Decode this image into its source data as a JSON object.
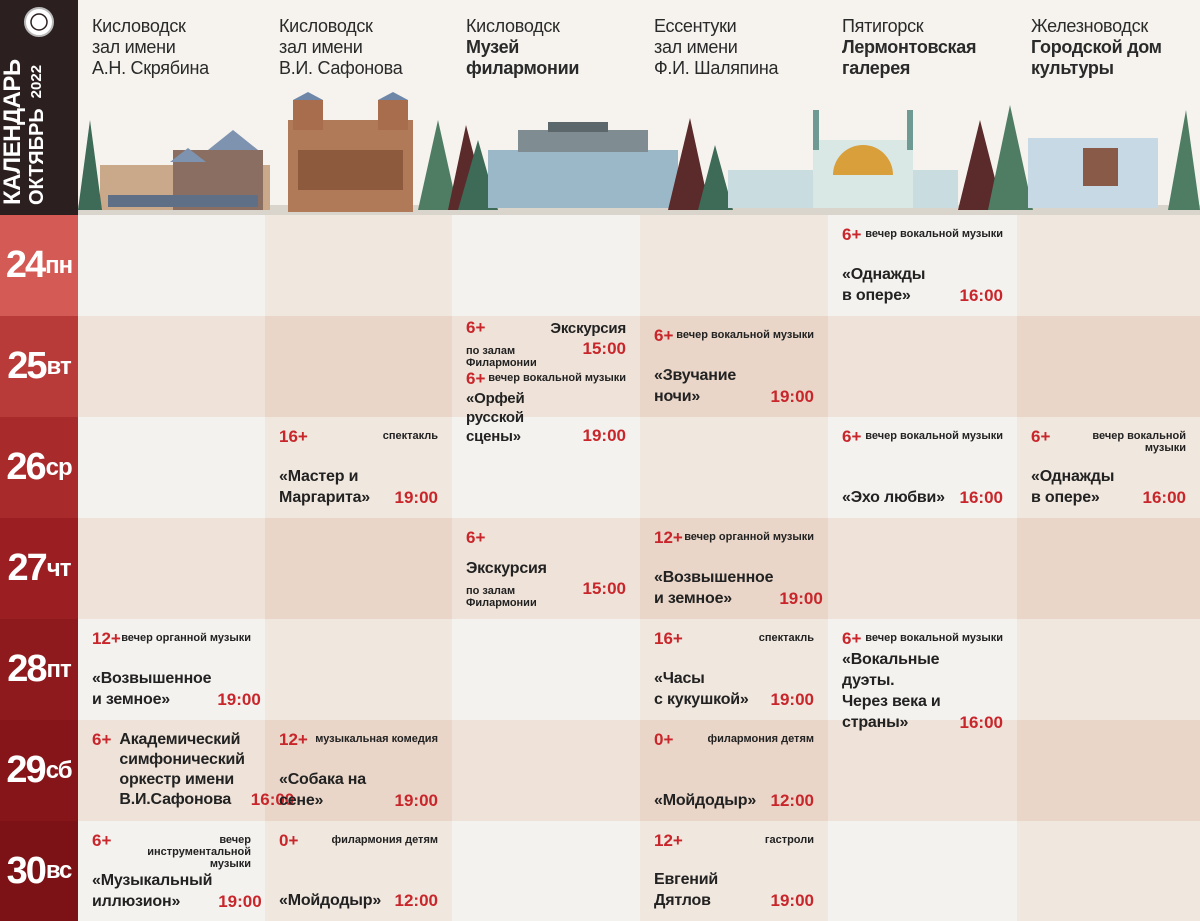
{
  "header": {
    "title": "КАЛЕНДАРЬ",
    "month": "ОКТЯБРЬ",
    "year": "2022"
  },
  "venues": [
    {
      "city": "Кисловодск",
      "hall": "зал имени",
      "name": "А.Н. Скрябина"
    },
    {
      "city": "Кисловодск",
      "hall": "зал имени",
      "name": "В.И. Сафонова"
    },
    {
      "city": "Кисловодск",
      "name": "Музей\nфилармонии"
    },
    {
      "city": "Ессентуки",
      "hall": "зал имени",
      "name": "Ф.И. Шаляпина"
    },
    {
      "city": "Пятигорск",
      "name": "Лермонтовская\nгалерея"
    },
    {
      "city": "Железноводск",
      "name": "Городской дом\nкультуры"
    }
  ],
  "days": [
    {
      "num": "24",
      "dow": "пн"
    },
    {
      "num": "25",
      "dow": "вт"
    },
    {
      "num": "26",
      "dow": "ср"
    },
    {
      "num": "27",
      "dow": "чт"
    },
    {
      "num": "28",
      "dow": "пт"
    },
    {
      "num": "29",
      "dow": "сб"
    },
    {
      "num": "30",
      "dow": "вс"
    }
  ],
  "events": [
    {
      "day": 0,
      "venue": 4,
      "age": "6+",
      "genre": "вечер вокальной музыки",
      "title": "«Однажды\nв опере»",
      "time": "16:00"
    },
    {
      "day": 1,
      "venue": 2,
      "age": "6+",
      "title": "Экскурсия",
      "note": "по залам Филармонии",
      "time": "15:00",
      "half": 0
    },
    {
      "day": 1,
      "venue": 2,
      "age": "6+",
      "genre": "вечер вокальной музыки",
      "title": "«Орфей русской\nсцены»",
      "time": "19:00",
      "half": 1
    },
    {
      "day": 1,
      "venue": 3,
      "age": "6+",
      "genre": "вечер вокальной музыки",
      "title": "«Звучание\nночи»",
      "time": "19:00"
    },
    {
      "day": 2,
      "venue": 1,
      "age": "16+",
      "genre": "спектакль",
      "title": "«Мастер и\nМаргарита»",
      "time": "19:00"
    },
    {
      "day": 2,
      "venue": 4,
      "age": "6+",
      "genre": "вечер вокальной музыки",
      "title": "«Эхо любви»",
      "time": "16:00"
    },
    {
      "day": 2,
      "venue": 5,
      "age": "6+",
      "genre": "вечер вокальной музыки",
      "title": "«Однажды\nв опере»",
      "time": "16:00"
    },
    {
      "day": 3,
      "venue": 2,
      "age": "6+",
      "title": "Экскурсия",
      "note": "по залам Филармонии",
      "time": "15:00"
    },
    {
      "day": 3,
      "venue": 3,
      "age": "12+",
      "genre": "вечер органной музыки",
      "title": "«Возвышенное\nи земное»",
      "time": "19:00"
    },
    {
      "day": 4,
      "venue": 0,
      "age": "12+",
      "genre": "вечер органной музыки",
      "title": "«Возвышенное\nи земное»",
      "time": "19:00"
    },
    {
      "day": 4,
      "venue": 3,
      "age": "16+",
      "genre": "спектакль",
      "title": "«Часы\nс кукушкой»",
      "time": "19:00"
    },
    {
      "day": 4,
      "venue": 4,
      "age": "6+",
      "genre": "вечер вокальной музыки",
      "title": "«Вокальные дуэты.\nЧерез века и\nстраны»",
      "time": "16:00"
    },
    {
      "day": 5,
      "venue": 0,
      "age": "6+",
      "title": "Академический\nсимфонический\nоркестр имени\nВ.И.Сафонова",
      "time": "16:00"
    },
    {
      "day": 5,
      "venue": 1,
      "age": "12+",
      "genre": "музыкальная комедия",
      "title": "«Собака на сене»",
      "time": "19:00"
    },
    {
      "day": 5,
      "venue": 3,
      "age": "0+",
      "genre": "филармония детям",
      "title": "«Мойдодыр»",
      "time": "12:00"
    },
    {
      "day": 6,
      "venue": 0,
      "age": "6+",
      "genre": "вечер\nинструментальной музыки",
      "title": "«Музыкальный\nиллюзион»",
      "time": "19:00"
    },
    {
      "day": 6,
      "venue": 1,
      "age": "0+",
      "genre": "филармония детям",
      "title": "«Мойдодыр»",
      "time": "12:00"
    },
    {
      "day": 6,
      "venue": 3,
      "age": "12+",
      "genre": "гастроли",
      "title": "Евгений Дятлов",
      "time": "19:00"
    }
  ]
}
